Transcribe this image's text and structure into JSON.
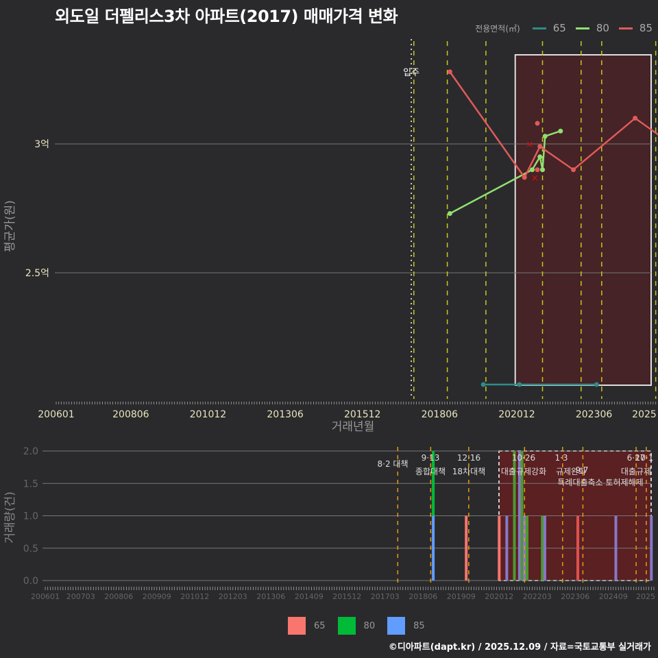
{
  "header": {
    "title": "외도일 더펠리스3차 아파트(2017) 매매가격 변화"
  },
  "legend_top": {
    "title": "전용면적(㎡)",
    "items": [
      {
        "label": "65",
        "color": "#2e8b8b"
      },
      {
        "label": "80",
        "color": "#90e070"
      },
      {
        "label": "85",
        "color": "#e05a5a"
      }
    ]
  },
  "legend_bottom": {
    "items": [
      {
        "label": "65",
        "color": "#f8766d"
      },
      {
        "label": "80",
        "color": "#00ba38"
      },
      {
        "label": "85",
        "color": "#619cff"
      }
    ]
  },
  "footer": {
    "credit": "©디아파트(dapt.kr) / 2025.12.09 / 자료=국토교통부 실거래가"
  },
  "chart_data": [
    {
      "type": "line",
      "title": "외도일 더펠리스3차 아파트(2017) 매매가격 변화",
      "xlabel": "거래년월",
      "ylabel": "평균가(원)",
      "x_ticks": [
        "200601",
        "200806",
        "201012",
        "201306",
        "201512",
        "201806",
        "202012",
        "202306",
        "2025"
      ],
      "y_ticks": [
        "2.5억",
        "3억"
      ],
      "ylim": [
        2.05,
        3.42
      ],
      "annotations": [
        {
          "text": "입주",
          "x": "201707"
        }
      ],
      "highlight_region": {
        "from": "202101",
        "to": "202512"
      },
      "series": [
        {
          "name": "65",
          "color": "#2e8b8b",
          "points": [
            [
              "201911",
              2.0
            ],
            [
              "202101",
              2.0
            ],
            [
              "202307",
              2.0
            ]
          ]
        },
        {
          "name": "80",
          "color": "#90e070",
          "points": [
            [
              "201810",
              2.73
            ],
            [
              "202106",
              2.9
            ],
            [
              "202109",
              2.95
            ],
            [
              "202110",
              2.9
            ],
            [
              "202111",
              3.03
            ],
            [
              "202205",
              3.05
            ]
          ]
        },
        {
          "name": "85",
          "color": "#e05a5a",
          "points": [
            [
              "201810",
              3.28
            ],
            [
              "202103",
              2.87
            ],
            [
              "202109",
              2.99
            ],
            [
              "202210",
              2.9
            ],
            [
              "202410",
              3.1
            ],
            [
              "202512",
              3.0
            ]
          ]
        }
      ],
      "extra_points": [
        {
          "x": "202108",
          "y": 3.08,
          "series": "85",
          "marker": "dot"
        },
        {
          "x": "202108",
          "y": 2.9,
          "series": "85",
          "marker": "dot"
        },
        {
          "x": "202105",
          "y": 3.0,
          "marker": "x"
        },
        {
          "x": "202107",
          "y": 2.87,
          "marker": "x"
        }
      ]
    },
    {
      "type": "bar",
      "xlabel": "",
      "ylabel": "거래량(건)",
      "x_ticks": [
        "200601",
        "200703",
        "200806",
        "200909",
        "201012",
        "201203",
        "201306",
        "201409",
        "201512",
        "201703",
        "201806",
        "201909",
        "202012",
        "202203",
        "202306",
        "202409",
        "2025"
      ],
      "y_ticks": [
        "0.0",
        "0.5",
        "1.0",
        "1.5",
        "2.0"
      ],
      "ylim": [
        0,
        2
      ],
      "policy_annotations": [
        {
          "date": "201708",
          "label": "8·2 대책"
        },
        {
          "date": "201809",
          "label": "9·13 종합대책"
        },
        {
          "date": "201912",
          "label": "12·16 18차대책"
        },
        {
          "date": "202110",
          "label": "10·26 대출규제강화"
        },
        {
          "date": "202301",
          "label": "1·3 규제완화"
        },
        {
          "date": "202309",
          "label": "9·7 특례대출축소 토허제해제"
        },
        {
          "date": "202506",
          "label": "6·27 대출규제"
        },
        {
          "date": "202510",
          "label": "10·1"
        }
      ],
      "bars": [
        {
          "x": "201810",
          "series": "85",
          "value": 1
        },
        {
          "x": "201810",
          "series": "80",
          "value": 1
        },
        {
          "x": "201911",
          "series": "65",
          "value": 1
        },
        {
          "x": "202012",
          "series": "65",
          "value": 1
        },
        {
          "x": "202103",
          "series": "85",
          "value": 1
        },
        {
          "x": "202106",
          "series": "80",
          "value": 2
        },
        {
          "x": "202108",
          "series": "85",
          "value": 2
        },
        {
          "x": "202109",
          "series": "80",
          "value": 2
        },
        {
          "x": "202110",
          "series": "85",
          "value": 1
        },
        {
          "x": "202111",
          "series": "80",
          "value": 1
        },
        {
          "x": "202205",
          "series": "80",
          "value": 1
        },
        {
          "x": "202206",
          "series": "85",
          "value": 1
        },
        {
          "x": "202307",
          "series": "65",
          "value": 1
        },
        {
          "x": "202410",
          "series": "85",
          "value": 1
        },
        {
          "x": "202512",
          "series": "85",
          "value": 1
        }
      ]
    }
  ]
}
